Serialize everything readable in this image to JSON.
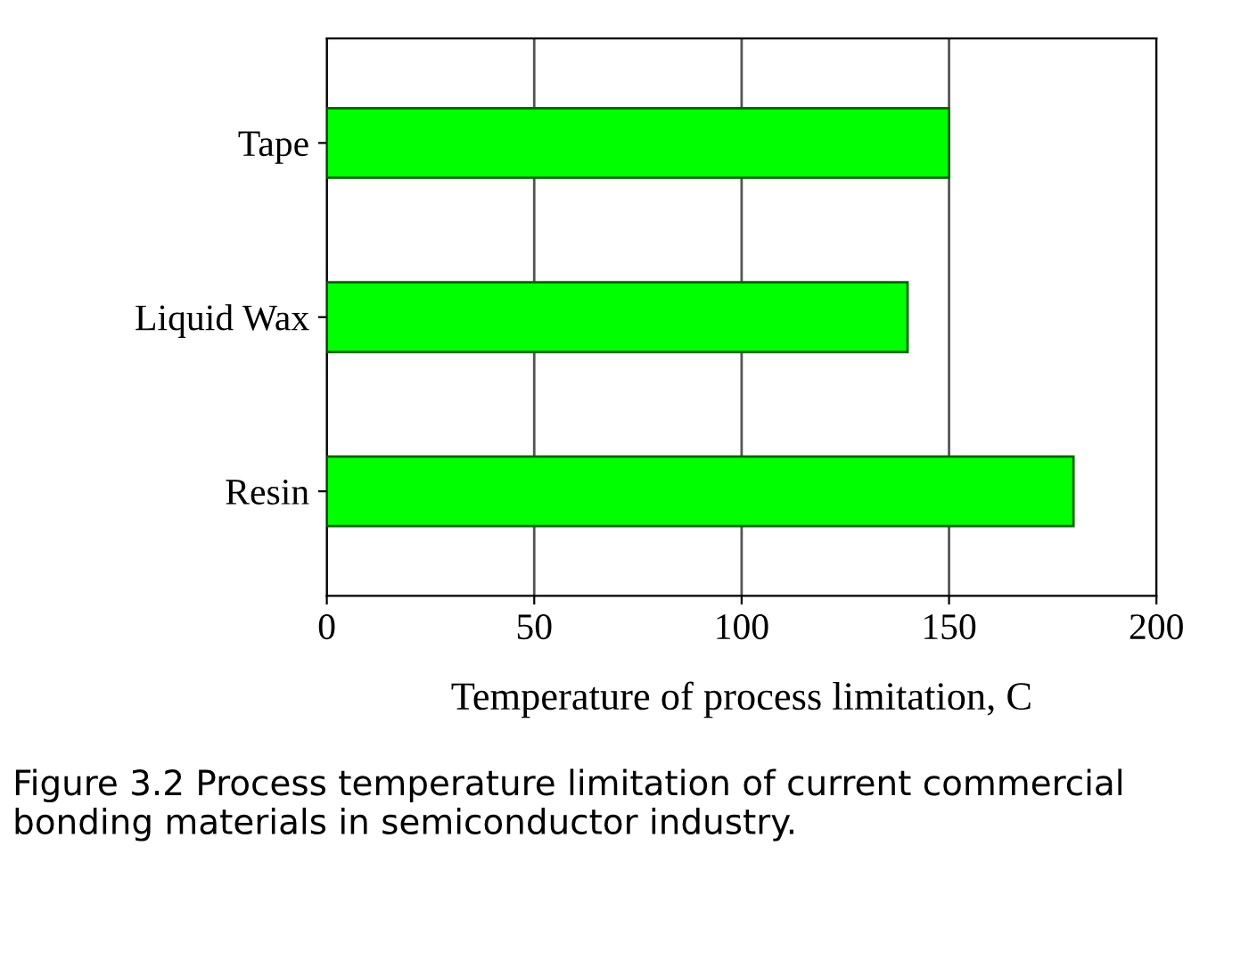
{
  "chart_data": {
    "type": "bar",
    "orientation": "horizontal",
    "categories": [
      "Tape",
      "Liquid Wax",
      "Resin"
    ],
    "values": [
      150,
      140,
      180
    ],
    "color": "#00ff00",
    "xlim": [
      0,
      200
    ],
    "xticks": [
      0,
      50,
      100,
      150,
      200
    ],
    "grid": "x",
    "xlabel": "Temperature of process limitation, C",
    "annotations": [
      "Figure 3.2 Process temperature limitation of current commercial bonding materials in semiconductor industry."
    ]
  }
}
